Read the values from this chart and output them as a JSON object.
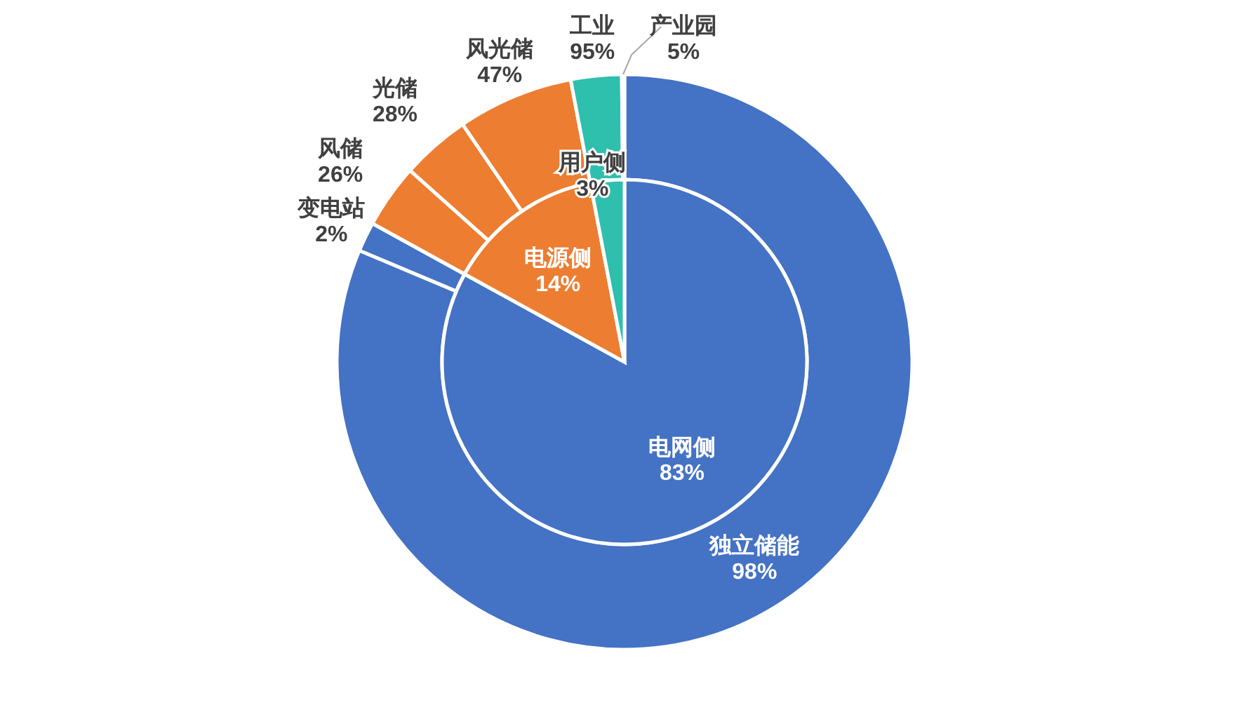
{
  "chart_data": [
    {
      "type": "pie",
      "categories": [
        "电网侧",
        "电源侧",
        "用户侧"
      ],
      "values": [
        83,
        14,
        3
      ],
      "value_labels": [
        "83%",
        "14%",
        "3%"
      ],
      "colors": [
        "#4472c4",
        "#ed7d31",
        "#2fbfad"
      ]
    },
    {
      "type": "other",
      "categories": [
        "独立储能",
        "变电站",
        "风储",
        "光储",
        "风光储",
        "工业",
        "产业园"
      ],
      "values": [
        98,
        2,
        26,
        28,
        47,
        95,
        5
      ],
      "value_labels": [
        "98%",
        "2%",
        "26%",
        "28%",
        "47%",
        "95%",
        "5%"
      ],
      "colors": [
        "#4472c4",
        "#4472c4",
        "#ed7d31",
        "#ed7d31",
        "#ed7d31",
        "#2fbfad",
        "#2fbfad"
      ]
    }
  ]
}
